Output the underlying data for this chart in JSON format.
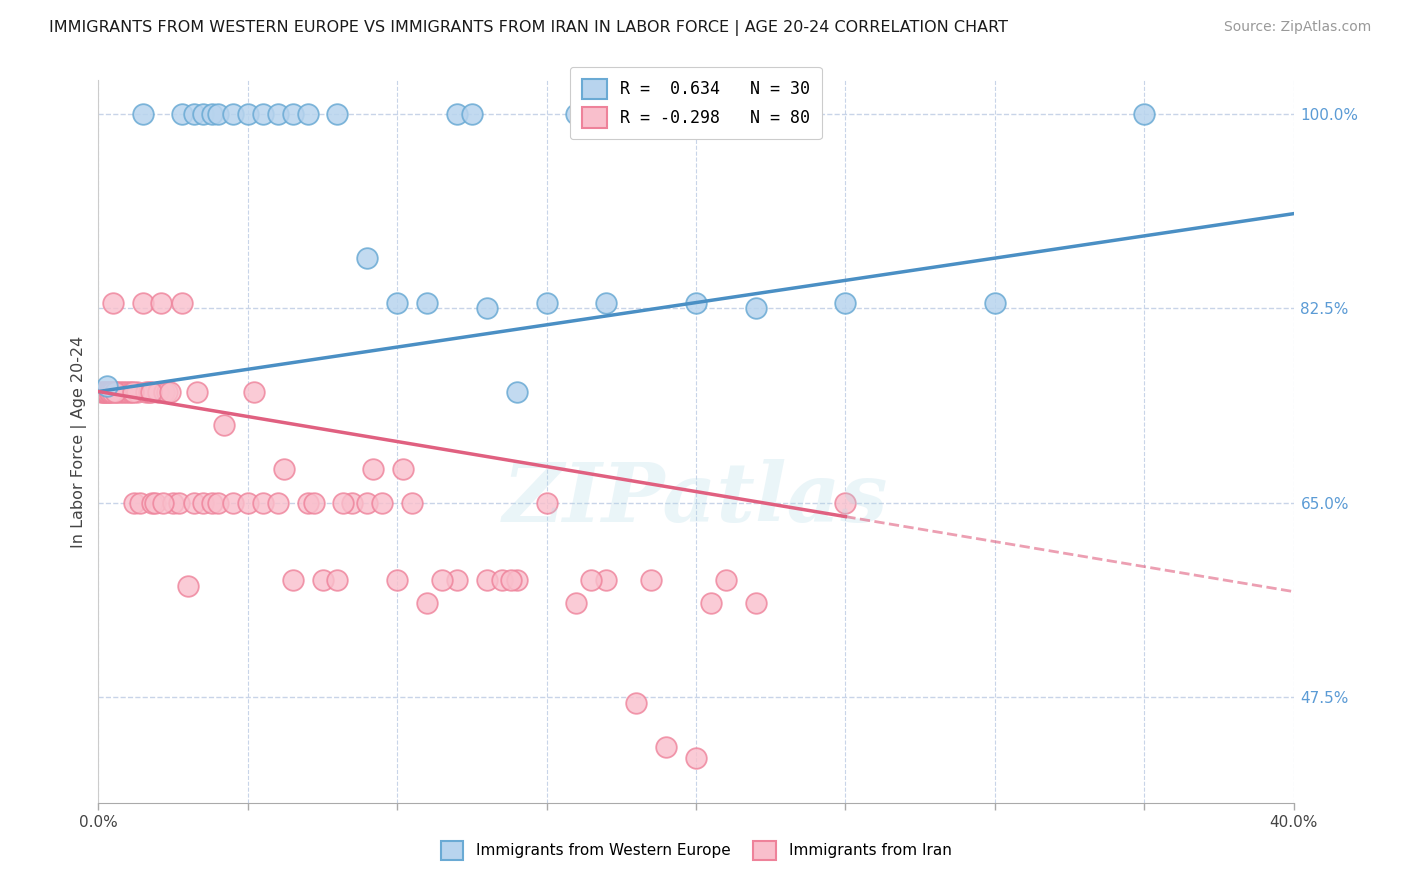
{
  "title": "IMMIGRANTS FROM WESTERN EUROPE VS IMMIGRANTS FROM IRAN IN LABOR FORCE | AGE 20-24 CORRELATION CHART",
  "source": "Source: ZipAtlas.com",
  "ylabel": "In Labor Force | Age 20-24",
  "ylabel_right_ticks": [
    100.0,
    82.5,
    65.0,
    47.5
  ],
  "ylabel_right_tick_labels": [
    "100.0%",
    "82.5%",
    "65.0%",
    "47.5%"
  ],
  "xmin": 0.0,
  "xmax": 40.0,
  "ymin": 38.0,
  "ymax": 103.0,
  "watermark": "ZIPatlas",
  "legend_blue_r": "R =  0.634",
  "legend_blue_n": "N = 30",
  "legend_pink_r": "R = -0.298",
  "legend_pink_n": "N = 80",
  "blue_fill_color": "#b8d4ee",
  "pink_fill_color": "#f9bfcc",
  "blue_edge_color": "#6aaad4",
  "pink_edge_color": "#ee829a",
  "blue_line_color": "#4a8fc4",
  "pink_line_color": "#e06080",
  "background_color": "#ffffff",
  "grid_color": "#c8d4e8",
  "blue_points_x": [
    0.3,
    1.5,
    2.8,
    3.2,
    3.5,
    3.8,
    4.0,
    4.5,
    5.0,
    5.5,
    6.0,
    6.5,
    7.0,
    8.0,
    9.0,
    10.0,
    11.0,
    12.0,
    12.5,
    13.0,
    14.0,
    15.0,
    16.0,
    17.0,
    18.0,
    20.0,
    22.0,
    25.0,
    30.0,
    35.0
  ],
  "blue_points_y": [
    75.5,
    100.0,
    100.0,
    100.0,
    100.0,
    100.0,
    100.0,
    100.0,
    100.0,
    100.0,
    100.0,
    100.0,
    100.0,
    100.0,
    87.0,
    83.0,
    83.0,
    100.0,
    100.0,
    82.5,
    75.0,
    83.0,
    100.0,
    83.0,
    100.0,
    83.0,
    82.5,
    83.0,
    83.0,
    100.0
  ],
  "pink_points_x": [
    0.1,
    0.15,
    0.2,
    0.25,
    0.3,
    0.35,
    0.4,
    0.5,
    0.6,
    0.7,
    0.8,
    0.9,
    1.0,
    1.1,
    1.2,
    1.3,
    1.4,
    1.5,
    1.6,
    1.7,
    1.8,
    1.9,
    2.0,
    2.1,
    2.2,
    2.3,
    2.5,
    2.7,
    3.0,
    3.2,
    3.5,
    3.8,
    4.0,
    4.5,
    5.0,
    5.5,
    6.0,
    6.5,
    7.0,
    7.5,
    8.0,
    8.5,
    9.0,
    9.5,
    10.0,
    10.5,
    11.0,
    12.0,
    13.0,
    13.5,
    14.0,
    15.0,
    16.0,
    17.0,
    18.0,
    19.0,
    20.0,
    21.0,
    22.0,
    25.0,
    2.8,
    3.3,
    4.2,
    5.2,
    6.2,
    7.2,
    8.2,
    9.2,
    10.2,
    11.5,
    13.8,
    16.5,
    18.5,
    20.5,
    0.45,
    0.55,
    1.15,
    1.75,
    2.15,
    2.4
  ],
  "pink_points_y": [
    75.0,
    75.0,
    75.0,
    75.0,
    75.0,
    75.0,
    75.0,
    83.0,
    75.0,
    75.0,
    75.0,
    75.0,
    75.0,
    75.0,
    65.0,
    75.0,
    65.0,
    83.0,
    75.0,
    75.0,
    65.0,
    65.0,
    75.0,
    83.0,
    75.0,
    75.0,
    65.0,
    65.0,
    57.5,
    65.0,
    65.0,
    65.0,
    65.0,
    65.0,
    65.0,
    65.0,
    65.0,
    58.0,
    65.0,
    58.0,
    58.0,
    65.0,
    65.0,
    65.0,
    58.0,
    65.0,
    56.0,
    58.0,
    58.0,
    58.0,
    58.0,
    65.0,
    56.0,
    58.0,
    47.0,
    43.0,
    42.0,
    58.0,
    56.0,
    65.0,
    83.0,
    75.0,
    72.0,
    75.0,
    68.0,
    65.0,
    65.0,
    68.0,
    68.0,
    58.0,
    58.0,
    58.0,
    58.0,
    56.0,
    75.0,
    75.0,
    75.0,
    75.0,
    65.0,
    75.0
  ],
  "blue_line_slope": 0.4,
  "blue_line_intercept": 75.0,
  "pink_line_slope": -0.45,
  "pink_line_intercept": 75.0,
  "pink_solid_end_x": 25.0
}
